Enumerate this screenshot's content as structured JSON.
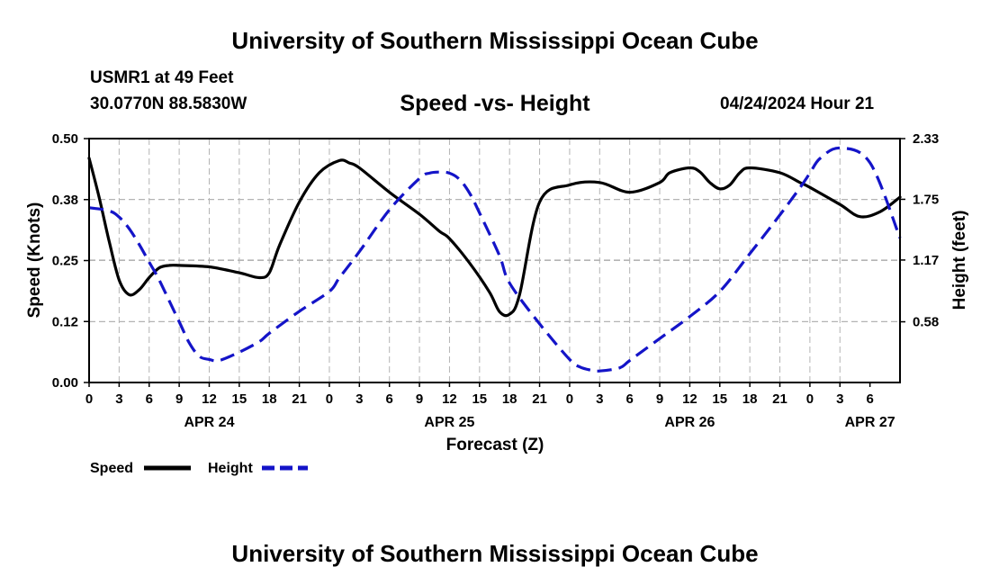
{
  "header": {
    "title": "University of Southern Mississippi Ocean Cube",
    "station": "USMR1 at 49 Feet",
    "coords": "30.0770N  88.5830W",
    "datetime": "04/24/2024 Hour 21",
    "footer_title": "University of Southern Mississippi Ocean Cube"
  },
  "chart_data": {
    "type": "line",
    "title": "Speed -vs- Height",
    "xlabel": "Forecast (Z)",
    "ylabel_left": "Speed (Knots)",
    "ylabel_right": "Height (feet)",
    "x_range_hours": [
      0,
      81
    ],
    "y_left_range": [
      0,
      0.5
    ],
    "y_right_range": [
      0,
      2.33
    ],
    "y_left_ticks": [
      "0.00",
      "0.12",
      "0.25",
      "0.38",
      "0.50"
    ],
    "y_right_ticks": [
      "0.58",
      "1.17",
      "1.75",
      "2.33"
    ],
    "y_right_tick_values": [
      0.58,
      1.17,
      1.75,
      2.33
    ],
    "x_ticks": [
      "0",
      "3",
      "6",
      "9",
      "12",
      "15",
      "18",
      "21",
      "0",
      "3",
      "6",
      "9",
      "12",
      "15",
      "18",
      "21",
      "0",
      "3",
      "6",
      "9",
      "12",
      "15",
      "18",
      "21",
      "0",
      "3",
      "6"
    ],
    "date_labels": [
      {
        "label": "APR 24",
        "hour": 12
      },
      {
        "label": "APR 25",
        "hour": 36
      },
      {
        "label": "APR 26",
        "hour": 60
      },
      {
        "label": "APR 27",
        "hour": 78
      }
    ],
    "grid": true,
    "legend_placement": "bottom-left",
    "colors": {
      "speed": "#000000",
      "height": "#1414c8",
      "grid": "#b4b4b4"
    },
    "series": [
      {
        "name": "Speed",
        "axis": "left",
        "style": "solid",
        "x": [
          0,
          1,
          2,
          3,
          4,
          5,
          6,
          7,
          8,
          9,
          12,
          15,
          17,
          18,
          19,
          21,
          23,
          25,
          26,
          27,
          30,
          33,
          35,
          36,
          38,
          40,
          41,
          42,
          43,
          45,
          48,
          51,
          54,
          57,
          58,
          60,
          61,
          62,
          63,
          64,
          65,
          66,
          69,
          71,
          72,
          75,
          77,
          79,
          81
        ],
        "values": [
          0.46,
          0.38,
          0.29,
          0.21,
          0.18,
          0.19,
          0.215,
          0.235,
          0.24,
          0.24,
          0.237,
          0.225,
          0.215,
          0.225,
          0.28,
          0.37,
          0.43,
          0.455,
          0.45,
          0.44,
          0.39,
          0.345,
          0.31,
          0.295,
          0.245,
          0.185,
          0.145,
          0.14,
          0.18,
          0.37,
          0.405,
          0.41,
          0.39,
          0.41,
          0.43,
          0.44,
          0.432,
          0.41,
          0.397,
          0.405,
          0.43,
          0.44,
          0.43,
          0.41,
          0.4,
          0.365,
          0.34,
          0.35,
          0.38
        ]
      },
      {
        "name": "Height",
        "axis": "right",
        "style": "dashed",
        "x": [
          0,
          2,
          3,
          4,
          5,
          6,
          7,
          9,
          10,
          11,
          12,
          13,
          15,
          17,
          18,
          21,
          24,
          25,
          27,
          30,
          33,
          34,
          35,
          36,
          37,
          38,
          39,
          41,
          42,
          45,
          48,
          49,
          50,
          51,
          53,
          54,
          57,
          60,
          63,
          66,
          69,
          71,
          72,
          73,
          75,
          78,
          81
        ],
        "values": [
          1.67,
          1.64,
          1.58,
          1.47,
          1.32,
          1.15,
          0.98,
          0.58,
          0.38,
          0.25,
          0.22,
          0.21,
          0.29,
          0.39,
          0.47,
          0.68,
          0.87,
          1.0,
          1.25,
          1.65,
          1.95,
          2.0,
          2.01,
          2.0,
          1.94,
          1.81,
          1.62,
          1.21,
          0.95,
          0.56,
          0.22,
          0.15,
          0.12,
          0.11,
          0.14,
          0.21,
          0.42,
          0.63,
          0.87,
          1.23,
          1.6,
          1.86,
          2.0,
          2.14,
          2.24,
          2.1,
          1.38
        ]
      }
    ]
  }
}
